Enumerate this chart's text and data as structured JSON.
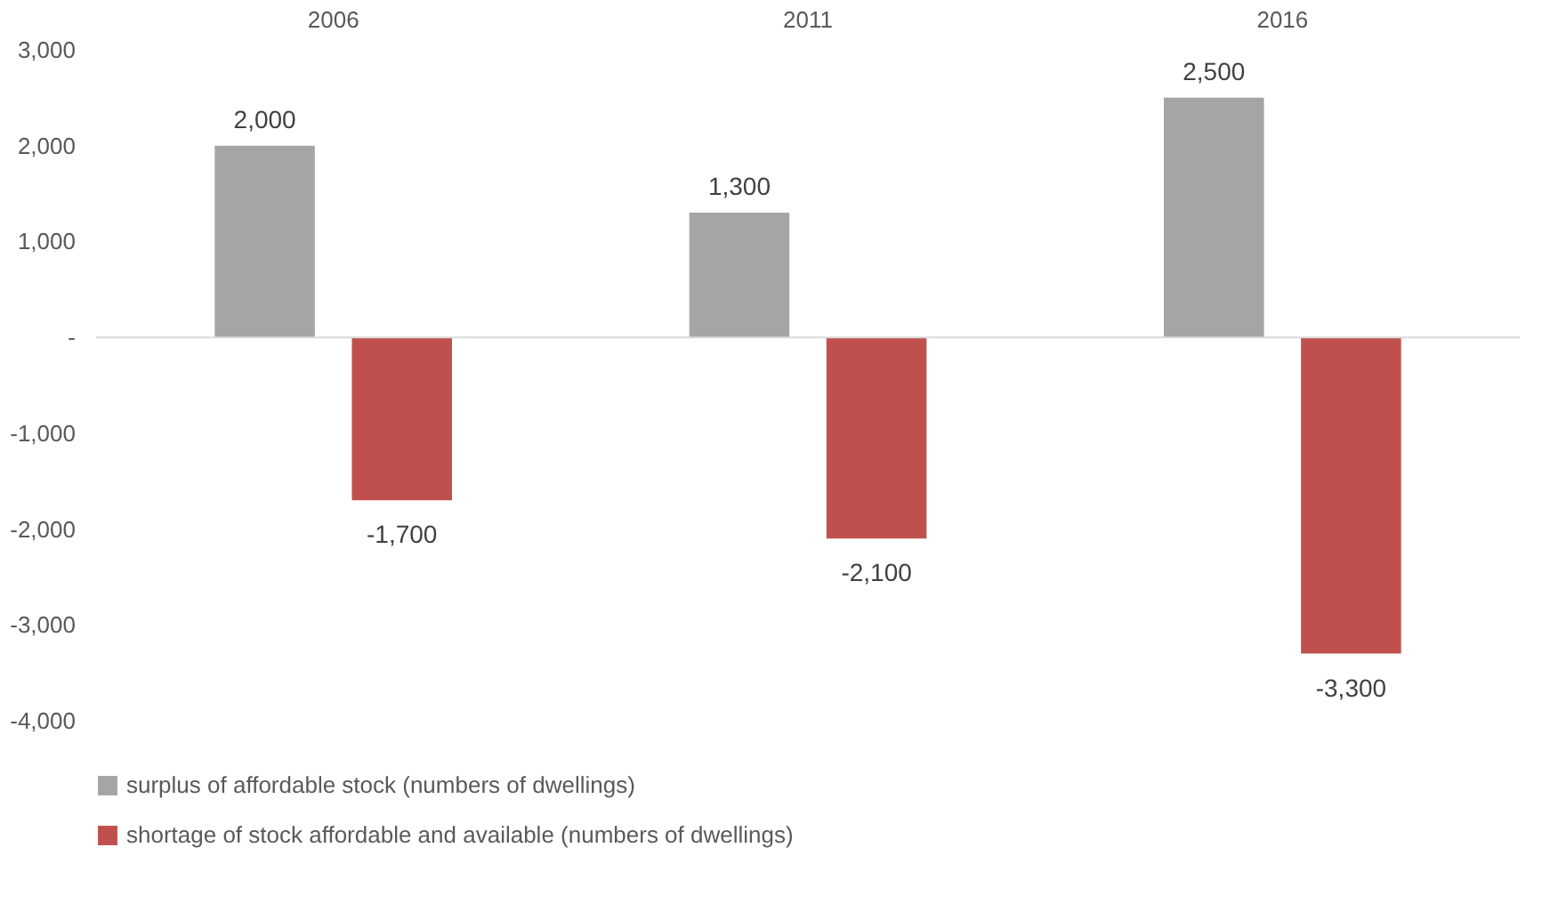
{
  "chart_data": {
    "type": "bar",
    "categories": [
      "2006",
      "2011",
      "2016"
    ],
    "series": [
      {
        "name": "surplus of affordable stock (numbers of dwellings)",
        "color": "#a5a5a5",
        "values": [
          2000,
          1300,
          2500
        ],
        "value_labels": [
          "2,000",
          "1,300",
          "2,500"
        ]
      },
      {
        "name": "shortage of stock affordable and available (numbers of dwellings)",
        "color": "#c0504d",
        "values": [
          -1700,
          -2100,
          -3300
        ],
        "value_labels": [
          "-1,700",
          "-2,100",
          "-3,300"
        ]
      }
    ],
    "ylim": [
      -4000,
      3000
    ],
    "yticks": [
      {
        "value": -4000,
        "label": "-4,000"
      },
      {
        "value": -3000,
        "label": "-3,000"
      },
      {
        "value": -2000,
        "label": "-2,000"
      },
      {
        "value": -1000,
        "label": "-1,000"
      },
      {
        "value": 0,
        "label": "-"
      },
      {
        "value": 1000,
        "label": "1,000"
      },
      {
        "value": 2000,
        "label": "2,000"
      },
      {
        "value": 3000,
        "label": "3,000"
      }
    ],
    "ref_lines": [
      {
        "axis": "y",
        "value": 0,
        "color": "#d9d9d9"
      }
    ],
    "legend": "bottom",
    "grid": false
  }
}
